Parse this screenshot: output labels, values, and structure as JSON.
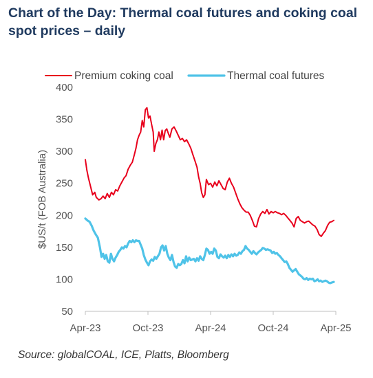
{
  "title": "Chart of the Day: Thermal coal futures and coking coal spot prices – daily",
  "source": "Source: globalCOAL, ICE, Platts, Bloomberg",
  "chart_data": {
    "type": "line",
    "ylabel": "$US/t (FOB Australia)",
    "ylim": [
      50,
      400
    ],
    "yticks": [
      50,
      100,
      150,
      200,
      250,
      300,
      350,
      400
    ],
    "xlim": [
      0,
      24
    ],
    "xticks": [
      {
        "x": 0,
        "label": "Apr-23"
      },
      {
        "x": 6,
        "label": "Oct-23"
      },
      {
        "x": 12,
        "label": "Apr-24"
      },
      {
        "x": 18,
        "label": "Oct-24"
      },
      {
        "x": 24,
        "label": "Apr-25"
      }
    ],
    "legend_position": "top",
    "series": [
      {
        "name": "Premium coking coal",
        "color": "#e8001c",
        "points": [
          [
            0.0,
            287
          ],
          [
            0.15,
            270
          ],
          [
            0.3,
            258
          ],
          [
            0.5,
            245
          ],
          [
            0.7,
            232
          ],
          [
            0.9,
            236
          ],
          [
            1.05,
            228
          ],
          [
            1.3,
            224
          ],
          [
            1.5,
            226
          ],
          [
            1.7,
            230
          ],
          [
            1.9,
            226
          ],
          [
            2.1,
            234
          ],
          [
            2.3,
            228
          ],
          [
            2.5,
            236
          ],
          [
            2.7,
            232
          ],
          [
            2.9,
            240
          ],
          [
            3.1,
            238
          ],
          [
            3.3,
            246
          ],
          [
            3.5,
            252
          ],
          [
            3.7,
            258
          ],
          [
            3.9,
            262
          ],
          [
            4.1,
            272
          ],
          [
            4.3,
            278
          ],
          [
            4.5,
            283
          ],
          [
            4.7,
            295
          ],
          [
            4.85,
            305
          ],
          [
            5.0,
            318
          ],
          [
            5.15,
            325
          ],
          [
            5.3,
            330
          ],
          [
            5.45,
            348
          ],
          [
            5.6,
            338
          ],
          [
            5.75,
            365
          ],
          [
            5.9,
            368
          ],
          [
            6.05,
            352
          ],
          [
            6.2,
            355
          ],
          [
            6.35,
            342
          ],
          [
            6.5,
            330
          ],
          [
            6.6,
            300
          ],
          [
            6.75,
            312
          ],
          [
            6.9,
            318
          ],
          [
            7.05,
            330
          ],
          [
            7.2,
            318
          ],
          [
            7.35,
            333
          ],
          [
            7.5,
            318
          ],
          [
            7.65,
            332
          ],
          [
            7.8,
            335
          ],
          [
            7.95,
            328
          ],
          [
            8.1,
            322
          ],
          [
            8.3,
            335
          ],
          [
            8.5,
            338
          ],
          [
            8.7,
            332
          ],
          [
            8.9,
            325
          ],
          [
            9.1,
            318
          ],
          [
            9.3,
            320
          ],
          [
            9.5,
            315
          ],
          [
            9.7,
            318
          ],
          [
            9.9,
            312
          ],
          [
            10.1,
            305
          ],
          [
            10.3,
            295
          ],
          [
            10.5,
            285
          ],
          [
            10.7,
            275
          ],
          [
            10.85,
            260
          ],
          [
            11.0,
            250
          ],
          [
            11.15,
            235
          ],
          [
            11.3,
            228
          ],
          [
            11.45,
            232
          ],
          [
            11.6,
            256
          ],
          [
            11.8,
            248
          ],
          [
            12.0,
            250
          ],
          [
            12.2,
            244
          ],
          [
            12.4,
            252
          ],
          [
            12.6,
            246
          ],
          [
            12.8,
            254
          ],
          [
            13.0,
            248
          ],
          [
            13.2,
            242
          ],
          [
            13.4,
            240
          ],
          [
            13.6,
            252
          ],
          [
            13.8,
            258
          ],
          [
            14.0,
            250
          ],
          [
            14.2,
            244
          ],
          [
            14.4,
            235
          ],
          [
            14.6,
            226
          ],
          [
            14.8,
            218
          ],
          [
            15.0,
            212
          ],
          [
            15.2,
            208
          ],
          [
            15.4,
            205
          ],
          [
            15.6,
            205
          ],
          [
            15.8,
            200
          ],
          [
            16.0,
            192
          ],
          [
            16.2,
            183
          ],
          [
            16.4,
            182
          ],
          [
            16.6,
            195
          ],
          [
            16.8,
            202
          ],
          [
            17.0,
            206
          ],
          [
            17.2,
            203
          ],
          [
            17.4,
            209
          ],
          [
            17.6,
            202
          ],
          [
            17.8,
            206
          ],
          [
            18.0,
            204
          ],
          [
            18.2,
            206
          ],
          [
            18.4,
            204
          ],
          [
            18.6,
            203
          ],
          [
            18.8,
            201
          ],
          [
            19.0,
            203
          ],
          [
            19.2,
            200
          ],
          [
            19.4,
            196
          ],
          [
            19.6,
            192
          ],
          [
            19.8,
            188
          ],
          [
            20.0,
            182
          ],
          [
            20.2,
            195
          ],
          [
            20.4,
            198
          ],
          [
            20.6,
            192
          ],
          [
            20.8,
            190
          ],
          [
            21.0,
            188
          ],
          [
            21.2,
            190
          ],
          [
            21.4,
            191
          ],
          [
            21.6,
            188
          ],
          [
            21.8,
            185
          ],
          [
            22.0,
            183
          ],
          [
            22.2,
            178
          ],
          [
            22.4,
            170
          ],
          [
            22.6,
            167
          ],
          [
            22.8,
            172
          ],
          [
            23.0,
            176
          ],
          [
            23.2,
            184
          ],
          [
            23.4,
            189
          ],
          [
            23.6,
            190
          ],
          [
            23.8,
            192
          ]
        ]
      },
      {
        "name": "Thermal coal futures",
        "color": "#4fc3e8",
        "points": [
          [
            0.0,
            195
          ],
          [
            0.2,
            192
          ],
          [
            0.4,
            190
          ],
          [
            0.6,
            184
          ],
          [
            0.8,
            176
          ],
          [
            1.0,
            170
          ],
          [
            1.2,
            165
          ],
          [
            1.4,
            150
          ],
          [
            1.55,
            135
          ],
          [
            1.7,
            140
          ],
          [
            1.85,
            132
          ],
          [
            2.0,
            138
          ],
          [
            2.15,
            128
          ],
          [
            2.3,
            126
          ],
          [
            2.45,
            140
          ],
          [
            2.6,
            132
          ],
          [
            2.75,
            128
          ],
          [
            2.9,
            134
          ],
          [
            3.05,
            138
          ],
          [
            3.2,
            143
          ],
          [
            3.35,
            146
          ],
          [
            3.5,
            150
          ],
          [
            3.65,
            148
          ],
          [
            3.8,
            152
          ],
          [
            3.95,
            150
          ],
          [
            4.1,
            156
          ],
          [
            4.25,
            160
          ],
          [
            4.4,
            158
          ],
          [
            4.55,
            161
          ],
          [
            4.7,
            158
          ],
          [
            4.85,
            161
          ],
          [
            5.0,
            160
          ],
          [
            5.15,
            160
          ],
          [
            5.3,
            154
          ],
          [
            5.45,
            148
          ],
          [
            5.6,
            138
          ],
          [
            5.75,
            131
          ],
          [
            5.9,
            126
          ],
          [
            6.05,
            122
          ],
          [
            6.2,
            128
          ],
          [
            6.35,
            131
          ],
          [
            6.5,
            129
          ],
          [
            6.65,
            135
          ],
          [
            6.8,
            132
          ],
          [
            6.95,
            136
          ],
          [
            7.1,
            140
          ],
          [
            7.25,
            150
          ],
          [
            7.4,
            153
          ],
          [
            7.55,
            145
          ],
          [
            7.7,
            152
          ],
          [
            7.85,
            140
          ],
          [
            8.0,
            134
          ],
          [
            8.15,
            130
          ],
          [
            8.3,
            138
          ],
          [
            8.45,
            127
          ],
          [
            8.6,
            120
          ],
          [
            8.75,
            118
          ],
          [
            8.9,
            124
          ],
          [
            9.05,
            122
          ],
          [
            9.2,
            124
          ],
          [
            9.35,
            130
          ],
          [
            9.5,
            125
          ],
          [
            9.65,
            136
          ],
          [
            9.8,
            128
          ],
          [
            9.95,
            134
          ],
          [
            10.1,
            130
          ],
          [
            10.25,
            131
          ],
          [
            10.4,
            132
          ],
          [
            10.55,
            128
          ],
          [
            10.7,
            133
          ],
          [
            10.85,
            129
          ],
          [
            11.0,
            136
          ],
          [
            11.15,
            132
          ],
          [
            11.3,
            130
          ],
          [
            11.45,
            138
          ],
          [
            11.6,
            148
          ],
          [
            11.75,
            146
          ],
          [
            11.9,
            140
          ],
          [
            12.05,
            143
          ],
          [
            12.2,
            140
          ],
          [
            12.35,
            148
          ],
          [
            12.5,
            145
          ],
          [
            12.65,
            135
          ],
          [
            12.8,
            133
          ],
          [
            12.95,
            139
          ],
          [
            13.1,
            136
          ],
          [
            13.25,
            134
          ],
          [
            13.4,
            137
          ],
          [
            13.55,
            133
          ],
          [
            13.7,
            138
          ],
          [
            13.85,
            135
          ],
          [
            14.0,
            139
          ],
          [
            14.15,
            136
          ],
          [
            14.3,
            140
          ],
          [
            14.45,
            137
          ],
          [
            14.6,
            138
          ],
          [
            14.75,
            142
          ],
          [
            14.9,
            140
          ],
          [
            15.05,
            144
          ],
          [
            15.2,
            146
          ],
          [
            15.35,
            152
          ],
          [
            15.5,
            148
          ],
          [
            15.65,
            146
          ],
          [
            15.8,
            143
          ],
          [
            15.95,
            140
          ],
          [
            16.1,
            144
          ],
          [
            16.25,
            141
          ],
          [
            16.4,
            139
          ],
          [
            16.55,
            142
          ],
          [
            16.7,
            144
          ],
          [
            16.85,
            146
          ],
          [
            17.0,
            149
          ],
          [
            17.15,
            148
          ],
          [
            17.3,
            146
          ],
          [
            17.45,
            147
          ],
          [
            17.6,
            146
          ],
          [
            17.75,
            145
          ],
          [
            17.9,
            141
          ],
          [
            18.05,
            143
          ],
          [
            18.2,
            140
          ],
          [
            18.35,
            141
          ],
          [
            18.5,
            138
          ],
          [
            18.65,
            136
          ],
          [
            18.8,
            133
          ],
          [
            18.95,
            130
          ],
          [
            19.1,
            127
          ],
          [
            19.25,
            128
          ],
          [
            19.4,
            124
          ],
          [
            19.55,
            118
          ],
          [
            19.7,
            115
          ],
          [
            19.85,
            112
          ],
          [
            20.0,
            114
          ],
          [
            20.15,
            116
          ],
          [
            20.3,
            112
          ],
          [
            20.45,
            108
          ],
          [
            20.6,
            106
          ],
          [
            20.75,
            104
          ],
          [
            20.9,
            101
          ],
          [
            21.05,
            100
          ],
          [
            21.2,
            102
          ],
          [
            21.35,
            99
          ],
          [
            21.5,
            101
          ],
          [
            21.65,
            100
          ],
          [
            21.8,
            101
          ],
          [
            21.95,
            97
          ],
          [
            22.1,
            98
          ],
          [
            22.25,
            100
          ],
          [
            22.4,
            97
          ],
          [
            22.55,
            98
          ],
          [
            22.7,
            96
          ],
          [
            22.85,
            97
          ],
          [
            23.0,
            98
          ],
          [
            23.15,
            97
          ],
          [
            23.3,
            95
          ],
          [
            23.45,
            94
          ],
          [
            23.6,
            95
          ],
          [
            23.8,
            96
          ]
        ]
      }
    ]
  }
}
